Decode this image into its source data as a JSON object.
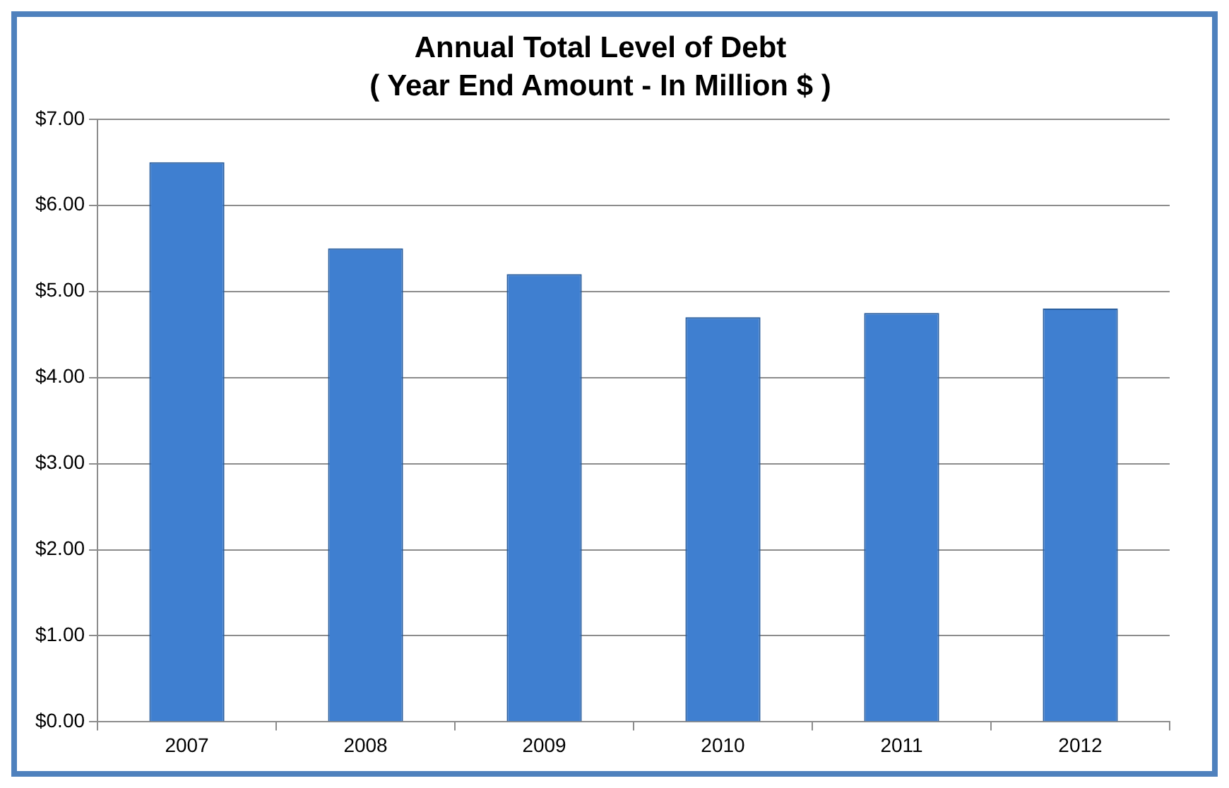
{
  "chart_data": {
    "type": "bar",
    "title": "Annual Total Level of Debt",
    "subtitle": "( Year End Amount - In Million $ )",
    "categories": [
      "2007",
      "2008",
      "2009",
      "2010",
      "2011",
      "2012"
    ],
    "values": [
      6.5,
      5.5,
      5.2,
      4.7,
      4.75,
      4.8
    ],
    "color": "#3f7fd0",
    "ylim": [
      0,
      7
    ],
    "yticks": [
      {
        "value": 0,
        "label": "$0.00"
      },
      {
        "value": 1,
        "label": "$1.00"
      },
      {
        "value": 2,
        "label": "$2.00"
      },
      {
        "value": 3,
        "label": "$3.00"
      },
      {
        "value": 4,
        "label": "$4.00"
      },
      {
        "value": 5,
        "label": "$5.00"
      },
      {
        "value": 6,
        "label": "$6.00"
      },
      {
        "value": 7,
        "label": "$7.00"
      }
    ],
    "grid": "y",
    "legend": false
  }
}
